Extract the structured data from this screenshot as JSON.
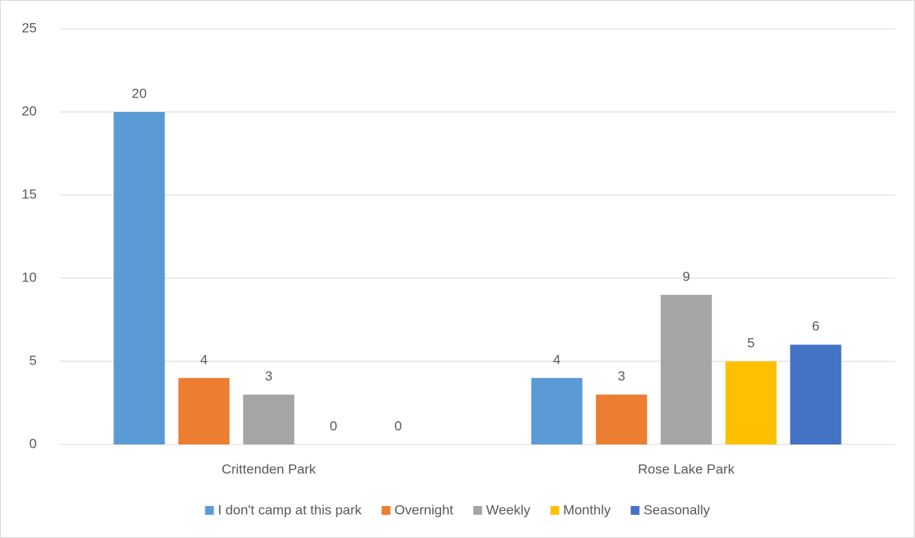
{
  "chart_data": {
    "type": "bar",
    "categories": [
      "Crittenden Park",
      "Rose Lake Park"
    ],
    "series": [
      {
        "name": "I don't camp at this park",
        "color": "#5b9bd5",
        "values": [
          20,
          4
        ]
      },
      {
        "name": "Overnight",
        "color": "#ed7d31",
        "values": [
          4,
          3
        ]
      },
      {
        "name": "Weekly",
        "color": "#a5a5a5",
        "values": [
          3,
          9
        ]
      },
      {
        "name": "Monthly",
        "color": "#ffc000",
        "values": [
          0,
          5
        ]
      },
      {
        "name": "Seasonally",
        "color": "#4472c4",
        "values": [
          0,
          6
        ]
      }
    ],
    "ylim": [
      0,
      25
    ],
    "yticks": [
      0,
      5,
      10,
      15,
      20,
      25
    ],
    "grid": true,
    "legend": "bottom"
  }
}
